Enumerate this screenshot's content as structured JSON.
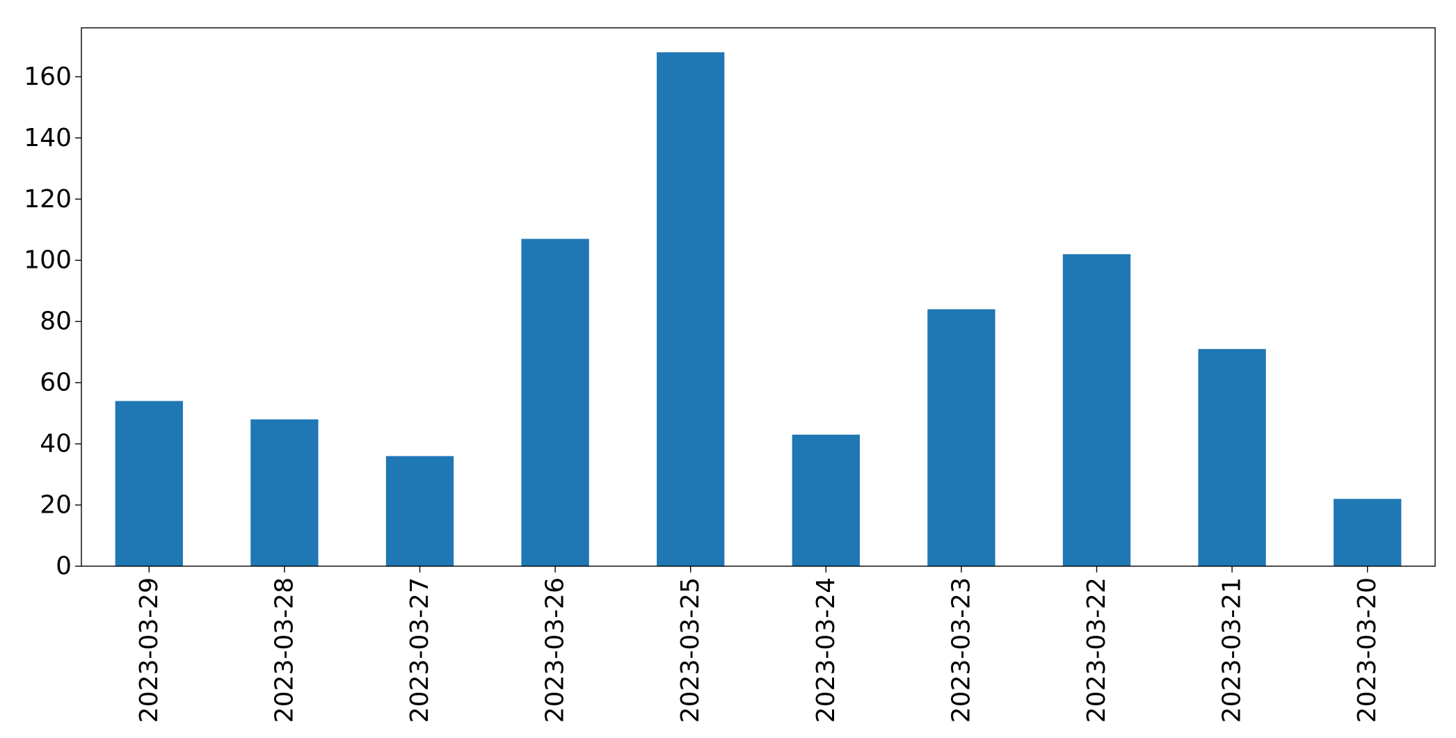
{
  "chart_data": {
    "type": "bar",
    "title": "",
    "xlabel": "",
    "ylabel": "",
    "categories": [
      "2023-03-29",
      "2023-03-28",
      "2023-03-27",
      "2023-03-26",
      "2023-03-25",
      "2023-03-24",
      "2023-03-23",
      "2023-03-22",
      "2023-03-21",
      "2023-03-20"
    ],
    "values": [
      54,
      48,
      36,
      107,
      168,
      43,
      84,
      102,
      71,
      22
    ],
    "ylim": [
      0,
      176
    ],
    "yticks": [
      0,
      20,
      40,
      60,
      80,
      100,
      120,
      140,
      160
    ],
    "grid": false,
    "legend": "none",
    "bar_color": "#1f77b4"
  }
}
